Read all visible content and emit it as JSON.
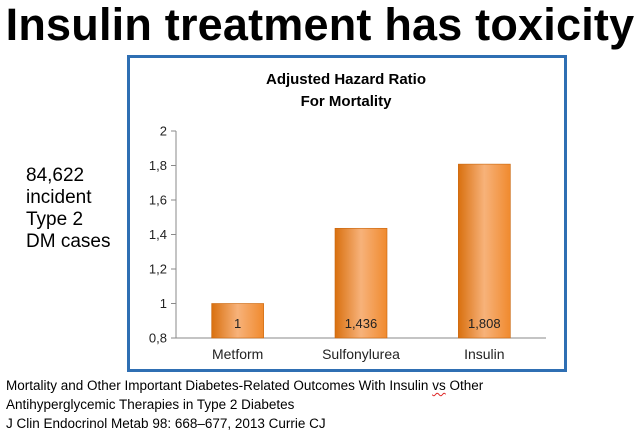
{
  "slide": {
    "title": "Insulin treatment has toxicity"
  },
  "side_note": {
    "lines": [
      "84,622",
      "incident",
      "Type 2",
      "DM cases"
    ]
  },
  "reference": {
    "line1_before": "Mortality and Other Important Diabetes-Related Outcomes With Insulin ",
    "line1_flagged": "vs",
    "line1_after": " Other",
    "line2": "Antihyperglycemic Therapies in Type 2 Diabetes",
    "line3": "J Clin Endocrinol Metab 98: 668–677, 2013 Currie CJ"
  },
  "colors": {
    "frame": "#2f6fb3",
    "bar_top": "#f7b27a",
    "bar_mid": "#f08a2e",
    "bar_bottom": "#d9700f"
  },
  "chart_data": {
    "type": "bar",
    "title": [
      "Adjusted Hazard Ratio",
      "For Mortality"
    ],
    "categories": [
      "Metform",
      "Sulfonylurea",
      "Insulin"
    ],
    "values": [
      1,
      1.436,
      1.808
    ],
    "data_labels": [
      "1",
      "1,436",
      "1,808"
    ],
    "ylim": [
      0.8,
      2
    ],
    "yticks": [
      0.8,
      1,
      1.2,
      1.4,
      1.6,
      1.8,
      2
    ],
    "ytick_labels": [
      "0,8",
      "1",
      "1,2",
      "1,4",
      "1,6",
      "1,8",
      "2"
    ],
    "grid": false,
    "legend": "none"
  }
}
